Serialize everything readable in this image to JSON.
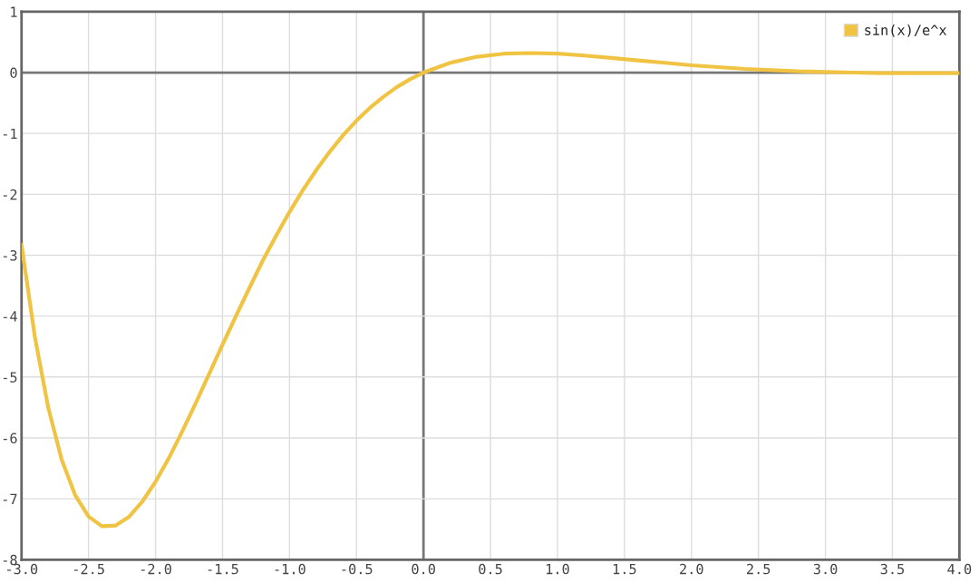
{
  "chart_data": {
    "type": "line",
    "x": [
      -3.0,
      -2.9,
      -2.8,
      -2.7,
      -2.6,
      -2.5,
      -2.4,
      -2.3,
      -2.2,
      -2.1,
      -2.0,
      -1.9,
      -1.8,
      -1.7,
      -1.6,
      -1.5,
      -1.4,
      -1.3,
      -1.2,
      -1.1,
      -1.0,
      -0.9,
      -0.8,
      -0.7,
      -0.6,
      -0.5,
      -0.4,
      -0.3,
      -0.2,
      -0.1,
      0.0,
      0.2,
      0.4,
      0.6,
      0.8,
      1.0,
      1.2,
      1.4,
      1.6,
      1.8,
      2.0,
      2.2,
      2.4,
      2.6,
      2.8,
      3.0,
      3.2,
      3.4,
      3.6,
      3.8,
      4.0
    ],
    "series": [
      {
        "name": "sin(x)/e^x",
        "color": "#f0c442",
        "values": [
          -2.83,
          -4.35,
          -5.51,
          -6.36,
          -6.94,
          -7.29,
          -7.45,
          -7.44,
          -7.3,
          -7.05,
          -6.72,
          -6.33,
          -5.89,
          -5.43,
          -4.95,
          -4.47,
          -4.0,
          -3.54,
          -3.09,
          -2.68,
          -2.29,
          -1.93,
          -1.6,
          -1.3,
          -1.03,
          -0.79,
          -0.58,
          -0.4,
          -0.24,
          -0.11,
          0.0,
          0.16,
          0.26,
          0.31,
          0.32,
          0.31,
          0.28,
          0.24,
          0.2,
          0.16,
          0.12,
          0.09,
          0.06,
          0.04,
          0.02,
          0.01,
          0.0,
          -0.01,
          -0.01,
          -0.01,
          -0.01
        ]
      }
    ],
    "xlim": [
      -3.0,
      4.0
    ],
    "xticks": [
      {
        "value": -3.0,
        "label": "-3.0"
      },
      {
        "value": -2.5,
        "label": "-2.5"
      },
      {
        "value": -2.0,
        "label": "-2.0"
      },
      {
        "value": -1.5,
        "label": "-1.5"
      },
      {
        "value": -1.0,
        "label": "-1.0"
      },
      {
        "value": -0.5,
        "label": "-0.5"
      },
      {
        "value": 0.0,
        "label": "0.0"
      },
      {
        "value": 0.5,
        "label": "0.5"
      },
      {
        "value": 1.0,
        "label": "1.0"
      },
      {
        "value": 1.5,
        "label": "1.5"
      },
      {
        "value": 2.0,
        "label": "2.0"
      },
      {
        "value": 2.5,
        "label": "2.5"
      },
      {
        "value": 3.0,
        "label": "3.0"
      },
      {
        "value": 3.5,
        "label": "3.5"
      },
      {
        "value": 4.0,
        "label": "4.0"
      }
    ],
    "ylim": [
      -8,
      1
    ],
    "yticks": [
      -8,
      -7,
      -6,
      -5,
      -4,
      -3,
      -2,
      -1,
      0,
      1
    ],
    "grid": true,
    "legend": "top right",
    "marker": "none",
    "line_style": "solid"
  }
}
